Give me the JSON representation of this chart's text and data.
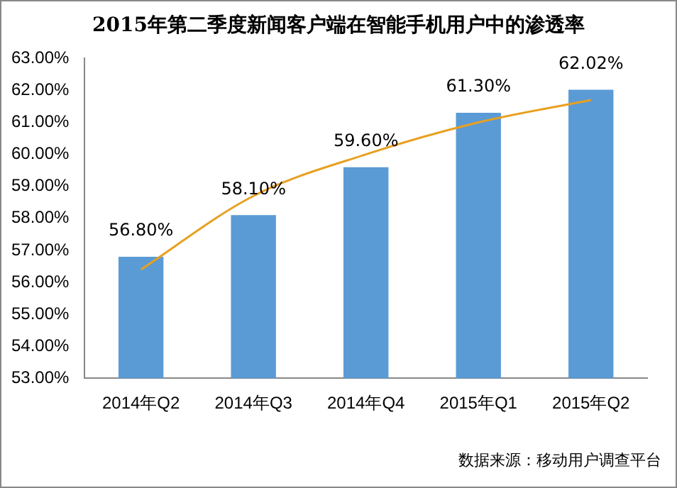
{
  "chart_data": {
    "type": "bar",
    "title": "2015年第二季度新闻客户端在智能手机用户中的渗透率",
    "categories": [
      "2014年Q2",
      "2014年Q3",
      "2014年Q4",
      "2015年Q1",
      "2015年Q2"
    ],
    "series": [
      {
        "color": "#5b9bd5",
        "values": [
          56.8,
          58.1,
          59.6,
          61.3,
          62.02
        ],
        "value_labels": [
          "56.80%",
          "58.10%",
          "59.60%",
          "61.30%",
          "62.02%"
        ]
      },
      {
        "type": "line",
        "color": "#e8a020",
        "x": [
          "2014年Q2",
          "2014年Q3",
          "2014年Q4",
          "2015年Q1",
          "2015年Q2"
        ],
        "values": [
          56.4,
          58.7,
          60.0,
          61.0,
          61.7
        ],
        "marker": "none"
      }
    ],
    "ylim": [
      53,
      63
    ],
    "yticks": [
      {
        "value": 53,
        "label": "53.00%"
      },
      {
        "value": 54,
        "label": "54.00%"
      },
      {
        "value": 55,
        "label": "55.00%"
      },
      {
        "value": 56,
        "label": "56.00%"
      },
      {
        "value": 57,
        "label": "57.00%"
      },
      {
        "value": 58,
        "label": "58.00%"
      },
      {
        "value": 59,
        "label": "59.00%"
      },
      {
        "value": 60,
        "label": "60.00%"
      },
      {
        "value": 61,
        "label": "61.00%"
      },
      {
        "value": 62,
        "label": "62.00%"
      },
      {
        "value": 63,
        "label": "63.00%"
      }
    ],
    "grid": false,
    "legend": false,
    "annotations": [
      "数据来源：移动用户调查平台"
    ]
  }
}
